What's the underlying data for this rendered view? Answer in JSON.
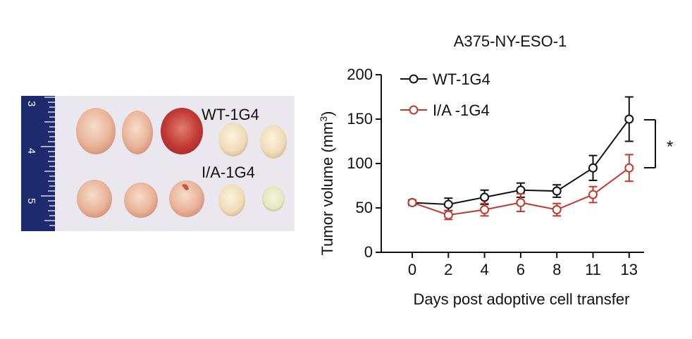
{
  "photo": {
    "ruler_labels": [
      "3",
      "4",
      "5"
    ],
    "row_labels": [
      "WT-1G4",
      "I/A-1G4"
    ]
  },
  "chart_data": {
    "type": "line",
    "title": "A375-NY-ESO-1",
    "xlabel": "Days post adoptive cell transfer",
    "ylabel": "Tumor volume (mm",
    "ylabel_superscript": "3",
    "ylabel_close": ")",
    "x": [
      0,
      2,
      4,
      6,
      8,
      11,
      13
    ],
    "categories": [
      "0",
      "2",
      "4",
      "6",
      "8",
      "11",
      "13"
    ],
    "yticks": [
      "0",
      "50",
      "100",
      "150",
      "200"
    ],
    "ylim": [
      0,
      200
    ],
    "series": [
      {
        "name": "WT-1G4",
        "color": "#111111",
        "values": [
          56,
          54,
          62,
          70,
          69,
          95,
          150
        ],
        "err": [
          3,
          7,
          8,
          8,
          7,
          14,
          25
        ]
      },
      {
        "name": "I/A -1G4",
        "color": "#c0392b",
        "values": [
          56,
          42,
          48,
          56,
          48,
          65,
          95
        ],
        "err": [
          3,
          5,
          7,
          10,
          7,
          9,
          15
        ]
      }
    ],
    "significance": "*",
    "legend_position": "top-left"
  }
}
